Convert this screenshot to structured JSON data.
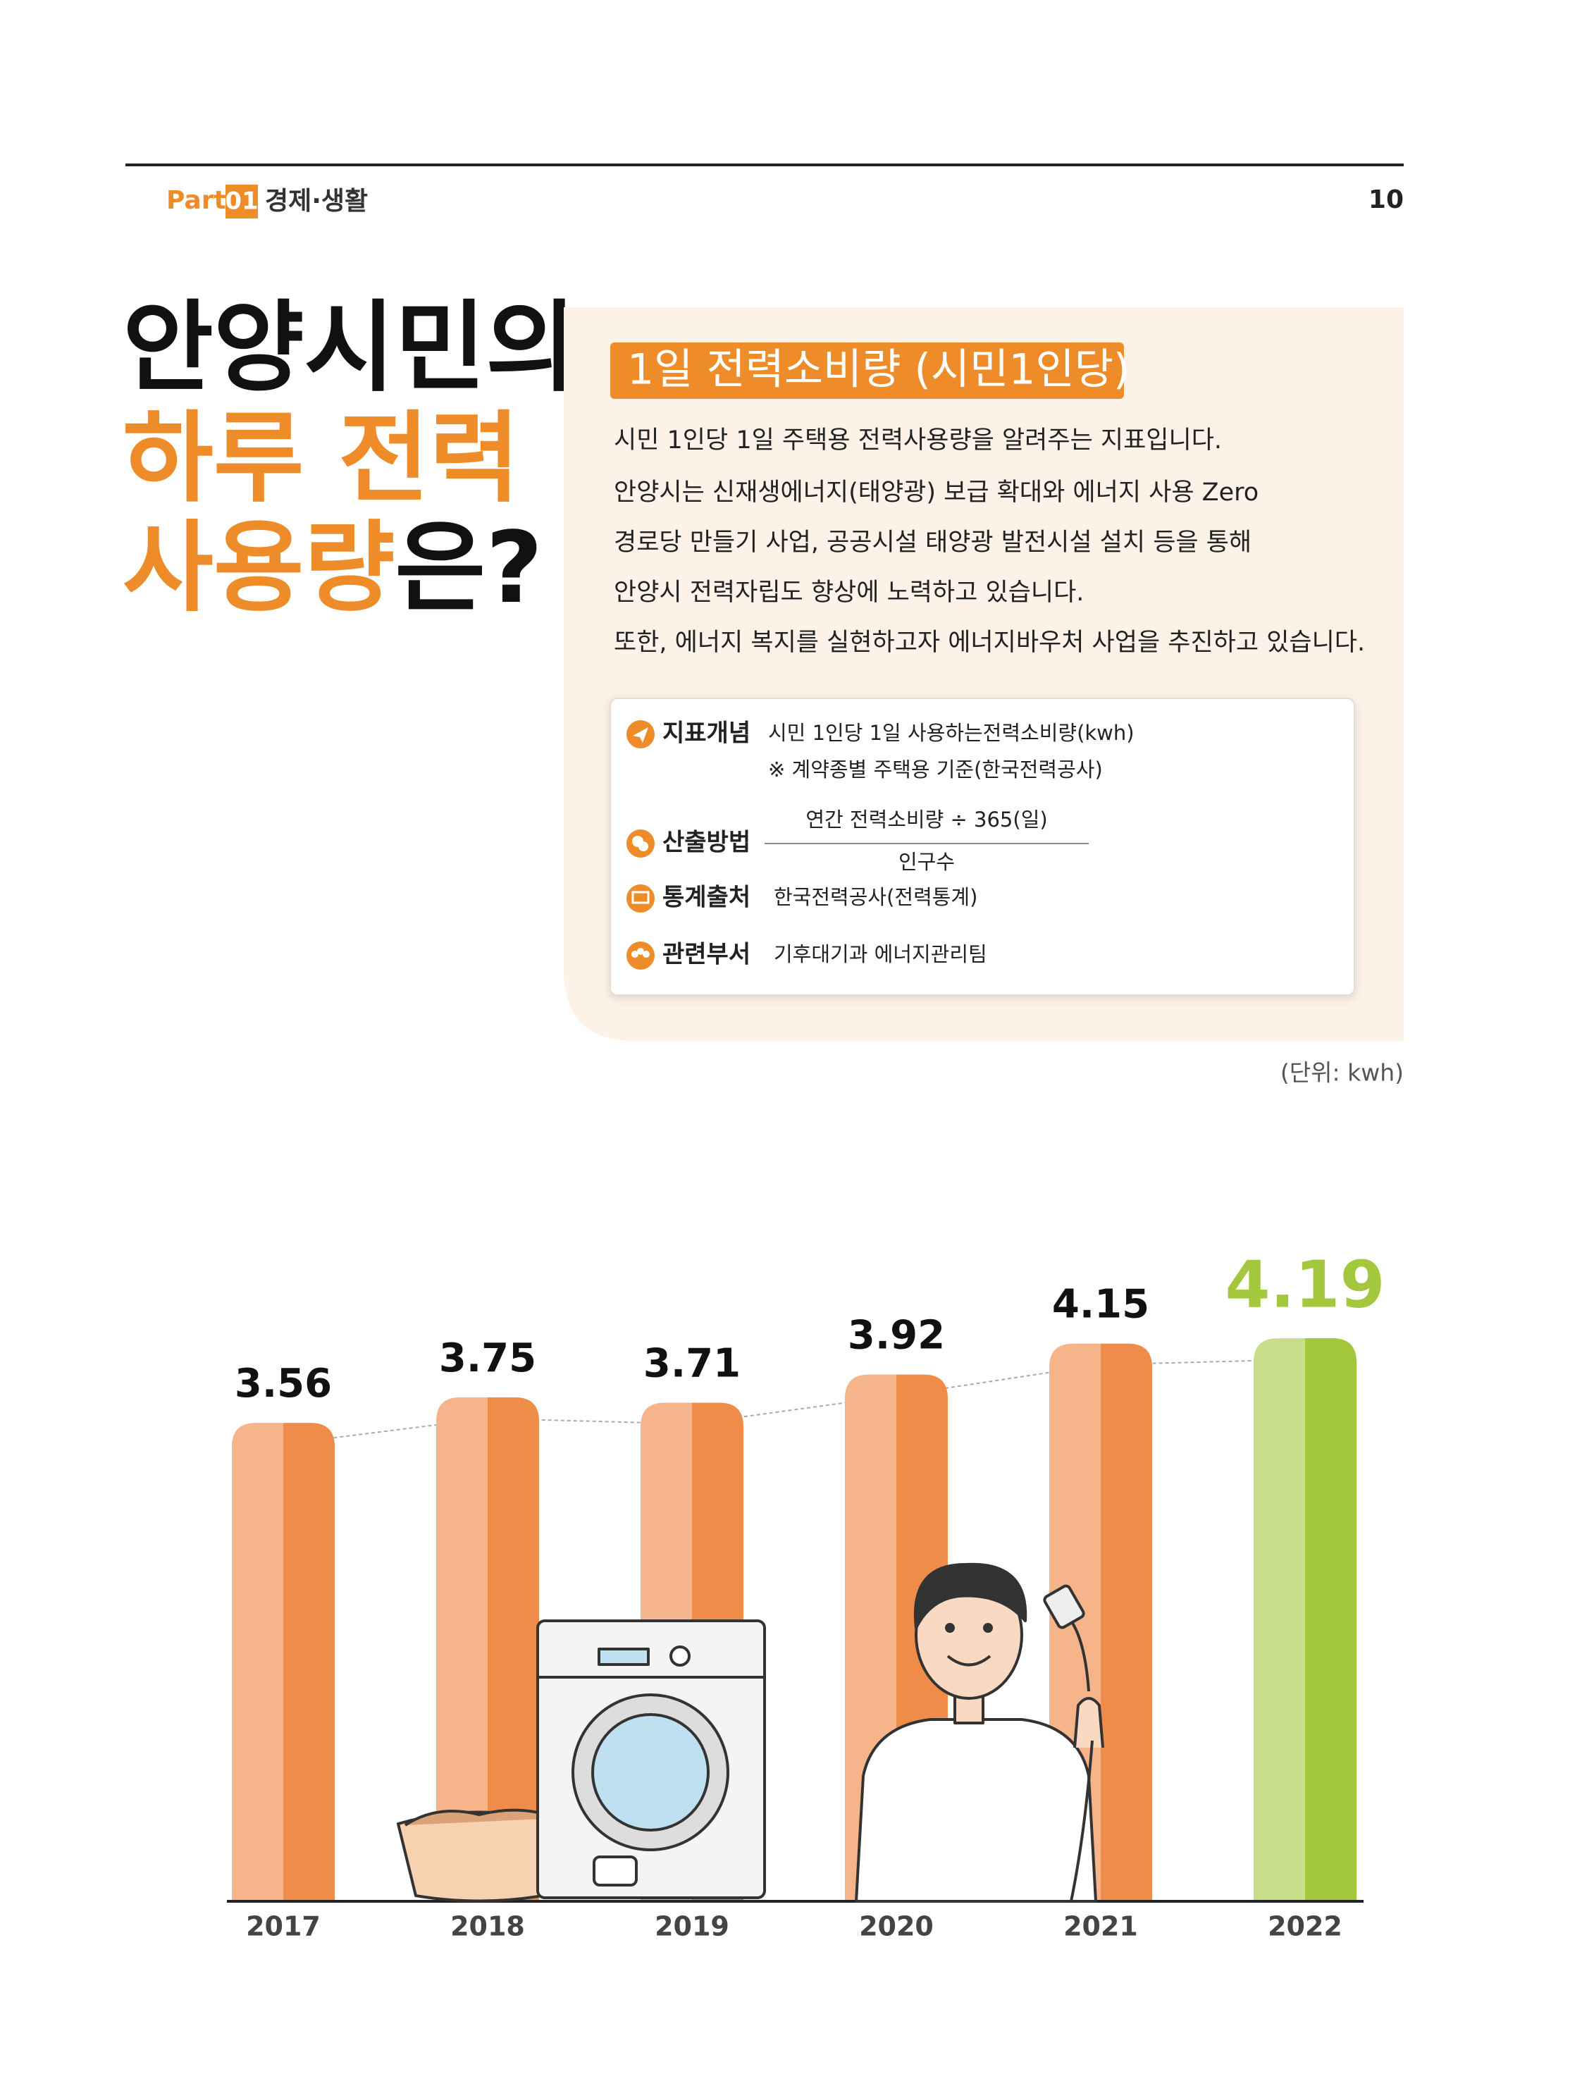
{
  "header": {
    "part_label": "Part",
    "part_number": "01",
    "section": "경제·생활",
    "page_number": "10"
  },
  "title": {
    "line1": "안양시민의",
    "line2": "하루 전력",
    "line3_highlight": "사용량",
    "line3_rest": "은?"
  },
  "info": {
    "heading": "1일 전력소비량 (시민1인당)",
    "paragraph": [
      "시민 1인당 1일 주택용 전력사용량을 알려주는 지표입니다.",
      "안양시는 신재생에너지(태양광) 보급 확대와 에너지 사용 Zero",
      "경로당 만들기 사업, 공공시설 태양광 발전시설 설치 등을 통해",
      "안양시 전력자립도 향상에 노력하고 있습니다.",
      "또한, 에너지 복지를 실현하고자 에너지바우처 사업을 추진하고 있습니다."
    ],
    "concept": {
      "label": "지표개념",
      "lines": [
        "시민 1인당 1일 사용하는전력소비량(kwh)",
        "※ 계약종별 주택용 기준(한국전력공사)"
      ]
    },
    "method": {
      "label": "산출방법",
      "numerator": "연간 전력소비량 ÷ 365(일)",
      "denominator": "인구수"
    },
    "source": {
      "label": "통계출처",
      "text": "한국전력공사(전력통계)"
    },
    "department": {
      "label": "관련부서",
      "text": "기후대기과 에너지관리팀"
    }
  },
  "unit_note": "(단위: kwh)",
  "chart_data": {
    "type": "bar",
    "categories": [
      "2017",
      "2018",
      "2019",
      "2020",
      "2021",
      "2022"
    ],
    "values": [
      3.56,
      3.75,
      3.71,
      3.92,
      4.15,
      4.19
    ],
    "colors": [
      "#ef8c4a",
      "#ef8c4a",
      "#ef8c4a",
      "#ef8c4a",
      "#ef8c4a",
      "#a3c83e"
    ]
  }
}
